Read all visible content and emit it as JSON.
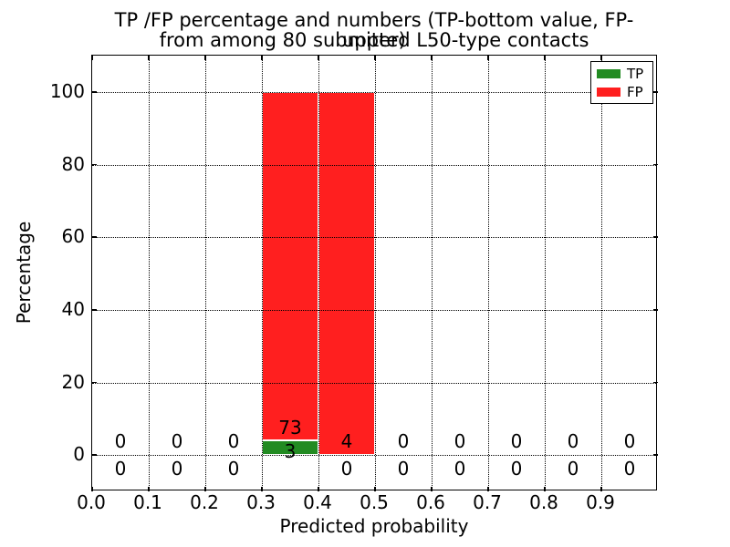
{
  "figure": {
    "title_line1": "TP /FP percentage and numbers (TP-bottom value, FP-upper)",
    "title_line2": "from among 80 submitted L50-type contacts"
  },
  "chart_data": {
    "type": "bar",
    "stacked": true,
    "title": "TP /FP percentage and numbers (TP-bottom value, FP-upper)\nfrom among 80 submitted L50-type contacts",
    "xlabel": "Predicted probability",
    "ylabel": "Percentage",
    "xlim": [
      0.0,
      1.0
    ],
    "ylim": [
      -10,
      110
    ],
    "x_tick_labels": [
      "0.0",
      "0.1",
      "0.2",
      "0.3",
      "0.4",
      "0.5",
      "0.6",
      "0.7",
      "0.8",
      "0.9"
    ],
    "y_tick_values": [
      0,
      20,
      40,
      60,
      80,
      100
    ],
    "grid": "dotted both axes",
    "legend_position": "upper right",
    "total_contacts": 80,
    "bin_width": 0.1,
    "bin_centers": [
      0.05,
      0.15,
      0.25,
      0.35,
      0.45,
      0.55,
      0.65,
      0.75,
      0.85,
      0.95
    ],
    "series": [
      {
        "name": "TP",
        "color": "#228b22",
        "counts": [
          0,
          0,
          0,
          3,
          0,
          0,
          0,
          0,
          0,
          0
        ],
        "percents": [
          0,
          0,
          0,
          3.95,
          0,
          0,
          0,
          0,
          0,
          0
        ]
      },
      {
        "name": "FP",
        "color": "#ff1f1f",
        "counts": [
          0,
          0,
          0,
          73,
          4,
          0,
          0,
          0,
          0,
          0
        ],
        "percents": [
          0,
          0,
          0,
          96.05,
          100,
          0,
          0,
          0,
          0,
          0
        ]
      }
    ],
    "annotation_note": "TP count shown at bottom of bar, FP count shown above"
  }
}
